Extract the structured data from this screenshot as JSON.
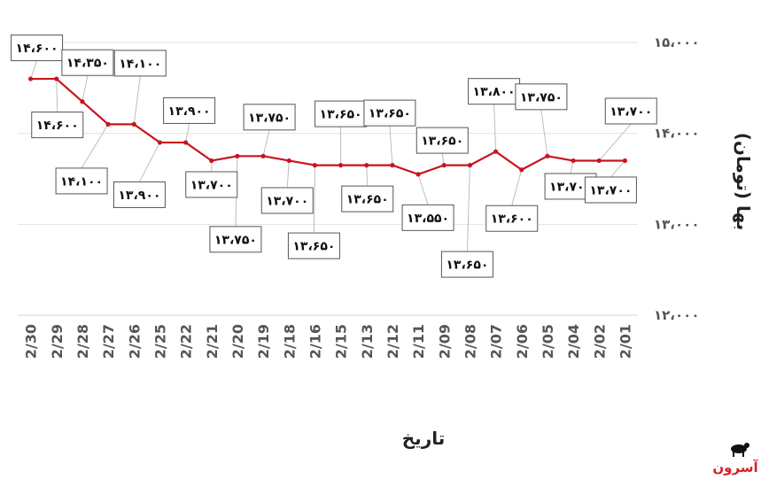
{
  "chart_data": {
    "type": "line",
    "title": "",
    "xlabel": "تاریخ",
    "ylabel": "بها (تومان)",
    "ylim": [
      12000,
      15000
    ],
    "yticks": [
      12000,
      13000,
      14000,
      15000
    ],
    "ytick_labels": [
      "۱۲،۰۰۰",
      "۱۳،۰۰۰",
      "۱۴،۰۰۰",
      "۱۵،۰۰۰"
    ],
    "grid": true,
    "categories": [
      "2/30",
      "2/29",
      "2/28",
      "2/27",
      "2/26",
      "2/25",
      "2/22",
      "2/21",
      "2/20",
      "2/19",
      "2/18",
      "2/16",
      "2/15",
      "2/13",
      "2/12",
      "2/11",
      "2/09",
      "2/08",
      "2/07",
      "2/06",
      "2/05",
      "2/04",
      "2/02",
      "2/01"
    ],
    "series": [
      {
        "name": "",
        "color": "#c8141e",
        "values": [
          14600,
          14600,
          14350,
          14100,
          14100,
          13900,
          13900,
          13700,
          13750,
          13750,
          13700,
          13650,
          13650,
          13650,
          13650,
          13550,
          13650,
          13650,
          13800,
          13600,
          13750,
          13700,
          13700,
          13700
        ],
        "data_labels": [
          "۱۴،۶۰۰",
          "۱۴،۶۰۰",
          "۱۴،۳۵۰",
          "۱۴،۱۰۰",
          "۱۴،۱۰۰",
          "۱۳،۹۰۰",
          "۱۳،۹۰۰",
          "۱۳،۷۰۰",
          "۱۳،۷۵۰",
          "۱۳،۷۵۰",
          "۱۳،۷۰۰",
          "۱۳،۶۵۰",
          "۱۳،۶۵۰",
          "۱۳،۶۵۰",
          "۱۳،۶۵۰",
          "۱۳،۵۵۰",
          "۱۳،۶۵۰",
          "۱۳،۶۵۰",
          "۱۳،۸۰۰",
          "۱۳،۶۰۰",
          "۱۳،۷۵۰",
          "۱۳،۷۰۰",
          "۱۳،۷۰۰",
          "۱۳،۷۰۰"
        ]
      }
    ]
  },
  "logo": {
    "text": "آسرون",
    "color": "#d61f26"
  }
}
